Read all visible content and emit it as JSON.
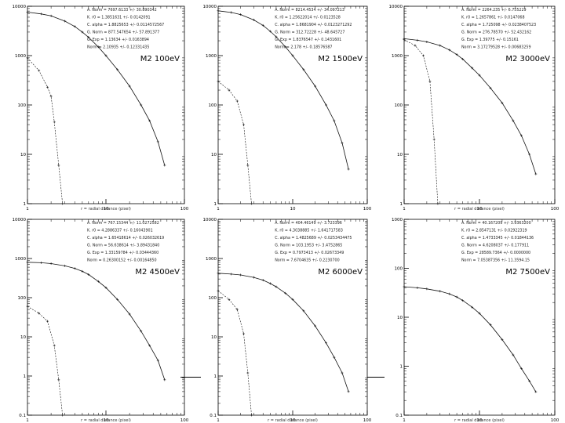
{
  "chart_data": [
    {
      "type": "scatter",
      "title": "",
      "label": "M2 100eV",
      "xlabel": "r = radial distance (pixel)",
      "ylabel": "",
      "x_scale": "log",
      "y_scale": "log",
      "xlim": [
        1,
        100
      ],
      "ylim": [
        1,
        10000
      ],
      "x_ticks": [
        "1",
        "10",
        "100"
      ],
      "y_ticks": [
        "1",
        "10",
        "100",
        "1000",
        "10000"
      ],
      "fit_params": [
        "A. Norm = 7697.6133 +/- 30.890342",
        "K. r0 = 1.3851631 +/- 0.0142091",
        "C. alpha = 1.8825653 +/- 0.0114572567",
        "G. Norm = 877.547654 +/- 57.891377",
        "G. Exp = 1.13634 +/- 0.0163894",
        "Norm = 2.10935 +/- 0.12331435"
      ],
      "series": [
        {
          "x": [
            1.0,
            1.5,
            2.0,
            3.0,
            4.0,
            5.0,
            6.0,
            8.0,
            10.0,
            14.0,
            20.0,
            28.0,
            36.0,
            46.0,
            56.0
          ],
          "y": [
            7600,
            7000,
            6400,
            5000,
            3900,
            3000,
            2350,
            1500,
            1000,
            520,
            240,
            100,
            48,
            18,
            6
          ]
        },
        {
          "x": [
            1.0,
            1.4,
            1.8,
            2.0,
            2.2,
            2.5,
            2.8
          ],
          "y": [
            900,
            500,
            230,
            150,
            45,
            6,
            1
          ]
        }
      ]
    },
    {
      "type": "scatter",
      "title": "",
      "label": "M2 1500eV",
      "xlabel": "",
      "ylabel": "",
      "x_scale": "log",
      "y_scale": "log",
      "xlim": [
        1,
        100
      ],
      "ylim": [
        1,
        10000
      ],
      "x_ticks": [
        "1",
        "10",
        "100"
      ],
      "y_ticks": [
        "1",
        "10",
        "100",
        "1000",
        "10000"
      ],
      "fit_params": [
        "A. Norm = 8214.4534 +/- 34.097213",
        "K. r0 = 1.25622014 +/- 0.0123528",
        "C. alpha = 1.8681904 +/- 0.0123271292",
        "G. Norm = 312.72228 +/- 48.645727",
        "G. Exp = 1.8376547 +/- 0.1431601",
        "Norm = 2.178 +/- 0.18576587"
      ],
      "series": [
        {
          "x": [
            1.0,
            1.5,
            2.0,
            3.0,
            4.0,
            5.0,
            6.0,
            8.0,
            10.0,
            14.0,
            20.0,
            28.0,
            36.0,
            46.0,
            56.0
          ],
          "y": [
            8100,
            7500,
            6800,
            5300,
            4100,
            3100,
            2400,
            1500,
            1000,
            520,
            240,
            100,
            48,
            17,
            5
          ]
        },
        {
          "x": [
            1.0,
            1.4,
            1.8,
            2.2,
            2.5,
            2.8
          ],
          "y": [
            300,
            200,
            120,
            40,
            6,
            1
          ]
        }
      ]
    },
    {
      "type": "scatter",
      "title": "",
      "label": "M2 3000eV",
      "xlabel": "r = radial distance (pixel)",
      "ylabel": "",
      "x_scale": "log",
      "y_scale": "log",
      "xlim": [
        1,
        100
      ],
      "ylim": [
        1,
        10000
      ],
      "x_ticks": [
        "1",
        "10",
        "100"
      ],
      "y_ticks": [
        "1",
        "10",
        "100",
        "1000",
        "10000"
      ],
      "fit_params": [
        "A. Norm = 2264.235 +/- 6.755229",
        "K. r0 = 1.2657861 +/- 0.0147068",
        "C. alpha = 1.725098 +/- 0.0238407523",
        "G. Norm = 276.78570 +/- 52.432162",
        "G. Exp = 1.39775 +/- 0.15161",
        "Norm = 3.17279528 +/- 0.00683259"
      ],
      "series": [
        {
          "x": [
            1.0,
            1.5,
            2.0,
            3.0,
            4.0,
            5.0,
            6.0,
            8.0,
            10.0,
            14.0,
            20.0,
            28.0,
            36.0,
            46.0,
            56.0
          ],
          "y": [
            2200,
            2050,
            1900,
            1600,
            1300,
            1050,
            850,
            560,
            400,
            220,
            110,
            48,
            24,
            10,
            4
          ]
        },
        {
          "x": [
            1.0,
            1.4,
            1.8,
            2.2,
            2.5,
            2.8
          ],
          "y": [
            2100,
            1600,
            1000,
            300,
            20,
            1
          ]
        }
      ]
    },
    {
      "type": "scatter",
      "title": "",
      "label": "M2 4500eV",
      "xlabel": "r = radial distance (pixel)",
      "ylabel": "",
      "x_scale": "log",
      "y_scale": "log",
      "xlim": [
        1,
        100
      ],
      "ylim": [
        0.1,
        10000
      ],
      "x_ticks": [
        "1",
        "10",
        "100"
      ],
      "y_ticks": [
        "0.1",
        "1",
        "10",
        "100",
        "1000",
        "10000"
      ],
      "fit_params": [
        "A. Norm = 767.15344 +/- 11.0272582",
        "K. r0 = 4.2886337 +/- 0.16043901",
        "C. alpha = 1.65418614 +/- 0.026032619",
        "G. Norm = 56.638614 +/- 3.89431840",
        "G. Exp = 1.33159784 +/- 0.03444360",
        "Norm = 0.26300152 +/- 0.00164850"
      ],
      "series": [
        {
          "x": [
            1.0,
            1.5,
            2.0,
            3.0,
            4.0,
            5.0,
            6.0,
            8.0,
            10.0,
            14.0,
            20.0,
            28.0,
            36.0,
            46.0,
            56.0
          ],
          "y": [
            800,
            780,
            740,
            650,
            560,
            470,
            390,
            260,
            180,
            90,
            38,
            14,
            6,
            2.5,
            0.8
          ]
        },
        {
          "x": [
            1.0,
            1.4,
            1.8,
            2.2,
            2.5,
            2.8
          ],
          "y": [
            60,
            40,
            25,
            6,
            0.8,
            0.1
          ]
        }
      ]
    },
    {
      "type": "scatter",
      "title": "",
      "label": "M2 6000eV",
      "xlabel": "r = radial distance (pixel)",
      "ylabel": "",
      "x_scale": "log",
      "y_scale": "log",
      "xlim": [
        1,
        100
      ],
      "ylim": [
        0.1,
        10000
      ],
      "x_ticks": [
        "1",
        "10",
        "100"
      ],
      "y_ticks": [
        "0.1",
        "1",
        "10",
        "100",
        "1000",
        "10000"
      ],
      "fit_params": [
        "A. Norm = 404.46149 +/- 3.723396",
        "K. r0 = 4.3038885 +/- 1.641717583",
        "C. alpha = 1.4825689 +/- 0.0253434475",
        "G. Norm = 103.1953 +/- 3.4752865",
        "G. Exp = 0.7973413 +/- 0.02673349",
        "Norm = 7.6704635 +/- 0.2230700"
      ],
      "series": [
        {
          "x": [
            1.0,
            1.5,
            2.0,
            3.0,
            4.0,
            5.0,
            6.0,
            8.0,
            10.0,
            14.0,
            20.0,
            28.0,
            36.0,
            46.0,
            56.0
          ],
          "y": [
            420,
            400,
            380,
            330,
            280,
            230,
            190,
            130,
            90,
            46,
            19,
            7,
            3,
            1.2,
            0.4
          ]
        },
        {
          "x": [
            1.0,
            1.4,
            1.8,
            2.2,
            2.5,
            2.8
          ],
          "y": [
            150,
            90,
            50,
            12,
            1.2,
            0.1
          ]
        }
      ]
    },
    {
      "type": "scatter",
      "title": "",
      "label": "M2 7500eV",
      "xlabel": "r = radial distance (pixel)",
      "ylabel": "",
      "x_scale": "log",
      "y_scale": "log",
      "xlim": [
        1,
        100
      ],
      "ylim": [
        0.1,
        1000
      ],
      "x_ticks": [
        "1",
        "10",
        "100"
      ],
      "y_ticks": [
        "0.1",
        "1",
        "10",
        "100",
        "1000"
      ],
      "fit_params": [
        "A. Norm = 40.167209 +/- 3.9363200",
        "K. r0 = 2.8547131 +/- 0.02922319",
        "C. alpha = 1.4733345 +/- 0.01844136",
        "G. Norm = 4.6208037 +/- 0.177911",
        "G. Exp = 28589.7364 +/- 0.0000000",
        "Norm = 7.05387356 +/- 11.3594.15"
      ],
      "series": [
        {
          "x": [
            1.0,
            1.5,
            2.0,
            3.0,
            4.0,
            5.0,
            6.0,
            8.0,
            10.0,
            14.0,
            20.0,
            28.0,
            36.0,
            46.0,
            56.0
          ],
          "y": [
            42,
            40,
            38,
            34,
            30,
            26,
            22,
            16,
            12,
            7,
            3.5,
            1.7,
            0.9,
            0.5,
            0.3
          ]
        }
      ]
    }
  ]
}
